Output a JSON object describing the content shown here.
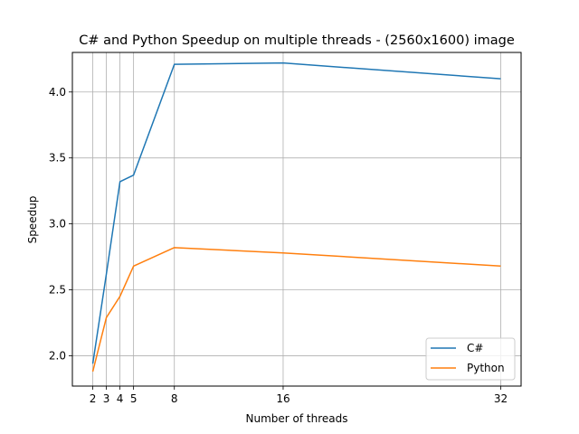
{
  "chart_data": {
    "type": "line",
    "title": "C#  and Python Speedup on multiple threads - (2560x1600) image",
    "xlabel": "Number of threads",
    "ylabel": "Speedup",
    "x": [
      2,
      3,
      4,
      5,
      8,
      16,
      32
    ],
    "xticks": [
      "2",
      "3",
      "4",
      "5",
      "8",
      "16",
      "32"
    ],
    "yticks": [
      "2.0",
      "2.5",
      "3.0",
      "3.5",
      "4.0"
    ],
    "ytick_values": [
      2.0,
      2.5,
      3.0,
      3.5,
      4.0
    ],
    "xlim": [
      0.5,
      33.5
    ],
    "ylim": [
      1.77,
      4.3
    ],
    "grid": true,
    "legend_position": "lower-right",
    "series": [
      {
        "name": "C#",
        "color": "#1f77b4",
        "values": [
          1.94,
          2.62,
          3.32,
          3.37,
          4.21,
          4.22,
          4.1
        ]
      },
      {
        "name": "Python",
        "color": "#ff7f0e",
        "values": [
          1.88,
          2.29,
          2.45,
          2.68,
          2.82,
          2.78,
          2.68
        ]
      }
    ]
  }
}
